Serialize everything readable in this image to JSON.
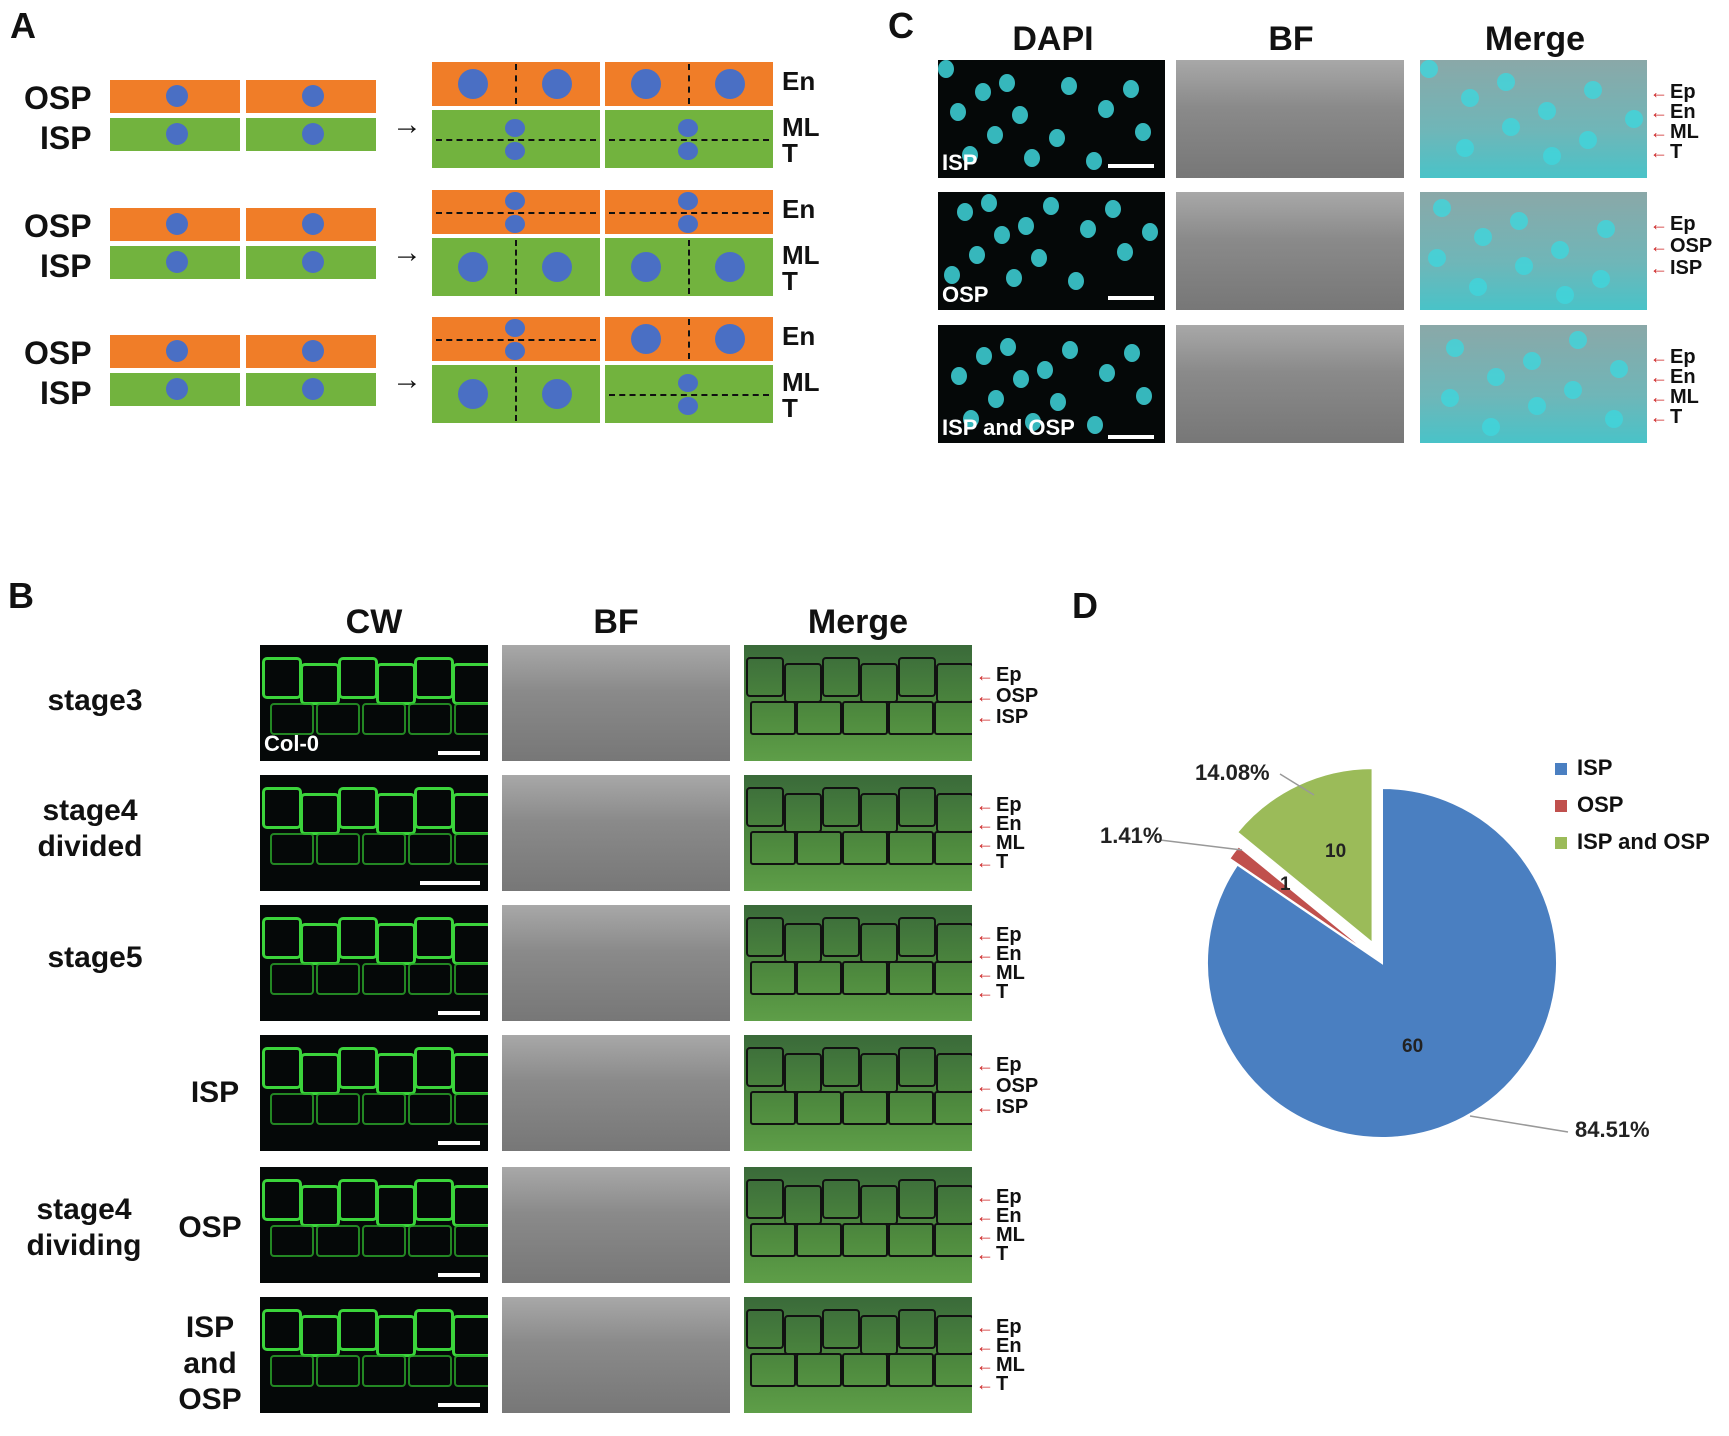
{
  "panels": {
    "a": {
      "label": "A",
      "rows": [
        {
          "outer": "OSP",
          "inner": "ISP",
          "right_labels": [
            "En",
            "ML",
            "T"
          ]
        },
        {
          "outer": "OSP",
          "inner": "ISP",
          "right_labels": [
            "En",
            "ML",
            "T"
          ]
        },
        {
          "outer": "OSP",
          "inner": "ISP",
          "right_labels": [
            "En",
            "ML",
            "T"
          ]
        }
      ],
      "colors": {
        "osp": "#f07d28",
        "isp": "#72b33e",
        "nucleus": "#4a6fc4"
      }
    },
    "b": {
      "label": "B",
      "headers": [
        "CW",
        "BF",
        "Merge"
      ],
      "rows": [
        {
          "label": "stage3",
          "layers": [
            "Ep",
            "OSP",
            "ISP"
          ],
          "tag": "Col-0"
        },
        {
          "label": "stage4\ndivided",
          "layers": [
            "Ep",
            "En",
            "ML",
            "T"
          ]
        },
        {
          "label": "stage5",
          "layers": [
            "Ep",
            "En",
            "ML",
            "T"
          ]
        },
        {
          "label": "ISP",
          "layers": [
            "Ep",
            "OSP",
            "ISP"
          ]
        },
        {
          "label": "OSP",
          "layers": [
            "Ep",
            "En",
            "ML",
            "T"
          ]
        },
        {
          "label": "ISP\nand\nOSP",
          "layers": [
            "Ep",
            "En",
            "ML",
            "T"
          ]
        }
      ],
      "group_label": "stage4\ndividing"
    },
    "c": {
      "label": "C",
      "headers": [
        "DAPI",
        "BF",
        "Merge"
      ],
      "rows": [
        {
          "tag": "ISP",
          "layers": [
            "Ep",
            "En",
            "ML",
            "T"
          ]
        },
        {
          "tag": "OSP",
          "layers": [
            "Ep",
            "OSP",
            "ISP"
          ]
        },
        {
          "tag": "ISP and OSP",
          "layers": [
            "Ep",
            "En",
            "ML",
            "T"
          ]
        }
      ]
    },
    "d": {
      "label": "D"
    }
  },
  "chart_data": {
    "type": "pie",
    "title": "",
    "slices": [
      {
        "name": "ISP",
        "value": 60,
        "percent_label": "84.51%",
        "color": "#4a7fc1"
      },
      {
        "name": "OSP",
        "value": 1,
        "percent_label": "1.41%",
        "color": "#c0504d"
      },
      {
        "name": "ISP and OSP",
        "value": 10,
        "percent_label": "14.08%",
        "color": "#9bbb59"
      }
    ],
    "legend_position": "right"
  }
}
